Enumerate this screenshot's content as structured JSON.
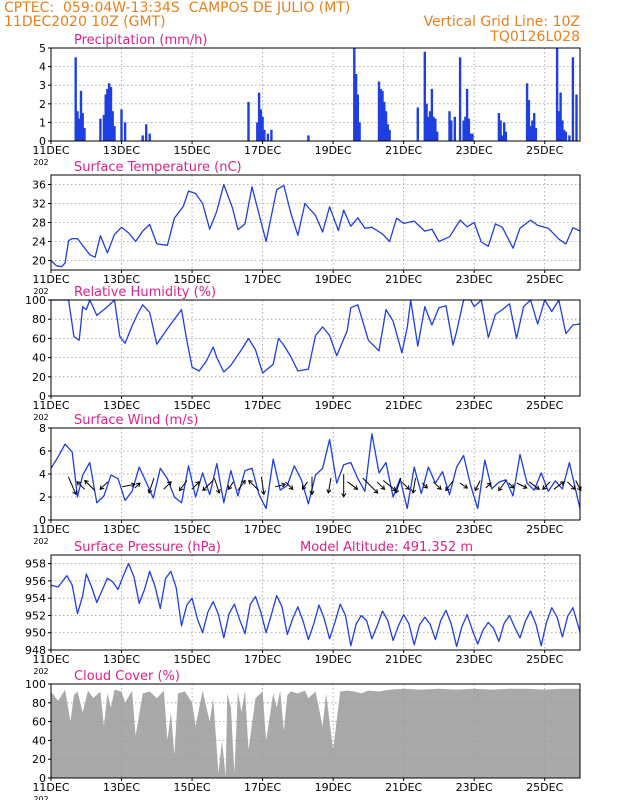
{
  "header": {
    "line1_left": "CPTEC:  059:04W-13:34S  CAMPOS DE JULIO (MT)",
    "line2_left": "11DEC2020 10Z (GMT)",
    "line1_right": "Vertical Grid Line: 10Z",
    "line2_right": "TQ0126L028"
  },
  "colors": {
    "header": "#e8801c",
    "title": "#e0208a",
    "line": "#1f3fe0",
    "cloud": "#a9a9a9",
    "grid": "#9a9a9a",
    "arrow": "#000000"
  },
  "x_axis": {
    "start_day": 11,
    "end_day": 26,
    "tick_labels": [
      "11DEC",
      "13DEC",
      "15DEC",
      "17DEC",
      "19DEC",
      "21DEC",
      "23DEC",
      "25DEC"
    ],
    "tick_days": [
      11,
      13,
      15,
      17,
      19,
      21,
      23,
      25
    ],
    "year_stub": "202"
  },
  "chart_data": [
    {
      "type": "bar",
      "title": "Precipitation (mm/h)",
      "ylim": [
        0,
        5
      ],
      "yticks": [
        0,
        1,
        2,
        3,
        4,
        5
      ],
      "x": [
        11.7,
        11.75,
        11.8,
        11.85,
        11.9,
        11.95,
        12.4,
        12.5,
        12.55,
        12.6,
        12.65,
        12.7,
        12.75,
        12.8,
        13.0,
        13.1,
        13.6,
        13.7,
        13.8,
        16.6,
        16.85,
        16.9,
        16.95,
        17.0,
        17.05,
        17.15,
        17.25,
        18.3,
        19.6,
        19.65,
        19.7,
        19.75,
        20.3,
        20.35,
        20.4,
        20.45,
        20.5,
        20.55,
        20.6,
        21.4,
        21.6,
        21.65,
        21.7,
        21.75,
        21.8,
        21.85,
        21.9,
        21.95,
        22.3,
        22.35,
        22.45,
        22.6,
        22.7,
        22.75,
        22.8,
        22.85,
        22.9,
        22.95,
        23.7,
        23.75,
        23.8,
        23.85,
        23.9,
        24.5,
        24.55,
        24.6,
        24.65,
        24.7,
        24.75,
        25.35,
        25.4,
        25.45,
        25.5,
        25.55,
        25.6,
        25.7,
        25.8,
        25.9
      ],
      "values": [
        4.5,
        1.6,
        1.2,
        2.7,
        1.5,
        0.7,
        1.2,
        1.4,
        2.5,
        2.8,
        3.1,
        2.9,
        1.6,
        0.8,
        1.7,
        1.0,
        0.3,
        0.9,
        0.4,
        2.1,
        1.0,
        2.6,
        1.7,
        1.3,
        0.6,
        0.4,
        0.6,
        0.3,
        5.0,
        3.6,
        2.5,
        1.0,
        3.2,
        2.8,
        2.7,
        2.1,
        1.6,
        0.9,
        0.6,
        1.8,
        4.8,
        2.0,
        1.3,
        1.6,
        2.8,
        1.3,
        1.2,
        0.5,
        1.6,
        1.1,
        1.3,
        4.5,
        1.1,
        1.3,
        2.8,
        1.2,
        0.4,
        0.4,
        1.5,
        1.1,
        0.3,
        1.0,
        0.5,
        3.1,
        2.2,
        0.8,
        1.1,
        1.5,
        0.7,
        5.0,
        1.6,
        2.6,
        1.1,
        0.6,
        0.5,
        0.3,
        4.5,
        2.5
      ]
    },
    {
      "type": "line",
      "title": "Surface Temperature (nC)",
      "ylim": [
        18,
        38
      ],
      "yticks": [
        20,
        24,
        28,
        32,
        36
      ],
      "x": [
        11.0,
        11.15,
        11.3,
        11.4,
        11.5,
        11.6,
        11.75,
        12.1,
        12.25,
        12.4,
        12.6,
        12.8,
        13.0,
        13.2,
        13.4,
        13.6,
        13.8,
        14.0,
        14.3,
        14.5,
        14.75,
        14.9,
        15.1,
        15.3,
        15.5,
        15.7,
        15.9,
        16.15,
        16.3,
        16.5,
        16.7,
        16.9,
        17.1,
        17.4,
        17.6,
        17.8,
        18.0,
        18.2,
        18.5,
        18.7,
        18.9,
        19.15,
        19.3,
        19.5,
        19.7,
        19.9,
        20.1,
        20.4,
        20.6,
        20.8,
        21.0,
        21.3,
        21.6,
        21.8,
        22.0,
        22.3,
        22.6,
        22.8,
        23.0,
        23.2,
        23.4,
        23.6,
        23.8,
        24.1,
        24.3,
        24.6,
        24.8,
        25.1,
        25.4,
        25.6,
        25.8,
        26.0
      ],
      "values": [
        20.0,
        18.9,
        18.7,
        19.5,
        24.2,
        24.6,
        24.6,
        21.2,
        20.7,
        25.2,
        21.6,
        25.5,
        27.0,
        25.8,
        24.0,
        26.2,
        27.6,
        23.5,
        23.2,
        28.9,
        31.4,
        34.6,
        34.1,
        32.0,
        26.6,
        30.4,
        36.0,
        31.0,
        26.5,
        27.7,
        35.5,
        29.7,
        24.0,
        34.9,
        35.8,
        30.0,
        25.3,
        32.0,
        29.5,
        26.0,
        31.3,
        26.3,
        30.6,
        27.2,
        29.0,
        26.8,
        27.0,
        25.6,
        24.0,
        28.9,
        27.8,
        28.3,
        26.2,
        26.6,
        24.0,
        25.0,
        28.5,
        27.1,
        28.0,
        23.9,
        23.0,
        27.7,
        27.0,
        22.6,
        26.8,
        28.5,
        27.4,
        26.8,
        24.5,
        23.5,
        26.9,
        26.2
      ]
    },
    {
      "type": "line",
      "title": "Relative Humidity (%)",
      "ylim": [
        0,
        100
      ],
      "yticks": [
        0,
        20,
        40,
        60,
        80,
        100
      ],
      "x": [
        11.0,
        11.5,
        11.65,
        11.8,
        11.9,
        12.0,
        12.1,
        12.3,
        12.6,
        12.8,
        12.95,
        13.1,
        13.3,
        13.45,
        13.6,
        13.8,
        14.0,
        14.3,
        14.5,
        14.7,
        14.85,
        15.0,
        15.2,
        15.4,
        15.6,
        15.7,
        15.9,
        16.1,
        16.4,
        16.6,
        16.8,
        17.0,
        17.3,
        17.45,
        17.6,
        17.8,
        18.0,
        18.3,
        18.5,
        18.7,
        18.9,
        19.1,
        19.4,
        19.5,
        19.7,
        20.0,
        20.3,
        20.5,
        20.7,
        20.95,
        21.1,
        21.2,
        21.4,
        21.6,
        21.8,
        22.0,
        22.2,
        22.4,
        22.5,
        22.7,
        22.9,
        23.0,
        23.2,
        23.4,
        23.6,
        23.8,
        24.0,
        24.2,
        24.4,
        24.6,
        24.8,
        25.0,
        25.2,
        25.4,
        25.6,
        25.8,
        26.0
      ],
      "values": [
        100,
        100,
        62,
        58,
        93,
        90,
        100,
        84,
        93,
        100,
        62,
        55,
        73,
        85,
        95,
        87,
        54,
        70,
        80,
        90,
        58,
        30,
        26,
        36,
        51,
        40,
        25,
        32,
        48,
        60,
        48,
        24,
        33,
        60,
        53,
        41,
        26,
        28,
        63,
        72,
        63,
        42,
        68,
        92,
        95,
        58,
        47,
        90,
        78,
        45,
        71,
        100,
        52,
        93,
        74,
        92,
        94,
        53,
        67,
        100,
        100,
        93,
        100,
        61,
        85,
        90,
        96,
        60,
        93,
        100,
        75,
        100,
        88,
        100,
        65,
        74,
        75
      ]
    },
    {
      "type": "line",
      "title": "Surface Wind (m/s)",
      "ylim": [
        0,
        8
      ],
      "yticks": [
        0,
        2,
        4,
        6,
        8
      ],
      "x": [
        11.0,
        11.2,
        11.4,
        11.6,
        11.75,
        11.9,
        12.1,
        12.3,
        12.5,
        12.7,
        12.9,
        13.1,
        13.3,
        13.5,
        13.7,
        13.9,
        14.1,
        14.3,
        14.5,
        14.7,
        14.9,
        15.1,
        15.3,
        15.5,
        15.7,
        15.9,
        16.1,
        16.3,
        16.5,
        16.7,
        16.9,
        17.1,
        17.3,
        17.5,
        17.7,
        17.9,
        18.1,
        18.3,
        18.5,
        18.7,
        18.9,
        19.1,
        19.3,
        19.5,
        19.7,
        19.9,
        20.1,
        20.3,
        20.5,
        20.7,
        20.9,
        21.1,
        21.3,
        21.5,
        21.7,
        21.9,
        22.1,
        22.3,
        22.5,
        22.7,
        22.9,
        23.1,
        23.3,
        23.5,
        23.7,
        23.9,
        24.1,
        24.3,
        24.5,
        24.7,
        24.9,
        25.1,
        25.3,
        25.5,
        25.7,
        25.9,
        26.0
      ],
      "values": [
        4.5,
        5.5,
        6.6,
        5.9,
        2.0,
        3.9,
        5.0,
        1.5,
        2.1,
        3.9,
        3.6,
        1.7,
        2.5,
        4.6,
        3.3,
        1.9,
        4.5,
        3.6,
        2.0,
        1.5,
        4.7,
        2.0,
        4.1,
        2.2,
        4.9,
        1.5,
        4.3,
        2.1,
        4.3,
        4.5,
        2.2,
        1.0,
        5.3,
        2.6,
        3.0,
        4.7,
        3.5,
        1.4,
        3.9,
        4.5,
        7.0,
        3.2,
        4.8,
        5.0,
        3.6,
        2.5,
        7.5,
        4.1,
        5.0,
        2.0,
        3.6,
        1.0,
        4.6,
        2.3,
        4.6,
        3.2,
        4.2,
        2.2,
        4.6,
        5.6,
        3.0,
        1.0,
        5.2,
        2.7,
        3.3,
        3.5,
        2.1,
        5.7,
        3.2,
        2.6,
        4.1,
        2.5,
        3.4,
        2.7,
        5.0,
        2.3,
        1.0
      ]
    },
    {
      "type": "line",
      "title": "Surface Pressure (hPa)",
      "ylim": [
        948,
        959
      ],
      "yticks": [
        948,
        950,
        952,
        954,
        956,
        958
      ],
      "x": [
        11.0,
        11.2,
        11.45,
        11.6,
        11.75,
        11.9,
        12.0,
        12.15,
        12.3,
        12.45,
        12.6,
        12.75,
        12.9,
        13.05,
        13.2,
        13.35,
        13.5,
        13.65,
        13.8,
        13.95,
        14.1,
        14.25,
        14.4,
        14.55,
        14.7,
        14.85,
        15.0,
        15.15,
        15.3,
        15.45,
        15.6,
        15.75,
        15.9,
        16.05,
        16.2,
        16.35,
        16.5,
        16.65,
        16.8,
        16.95,
        17.1,
        17.25,
        17.4,
        17.55,
        17.7,
        17.85,
        18.0,
        18.15,
        18.3,
        18.45,
        18.6,
        18.75,
        18.9,
        19.05,
        19.2,
        19.35,
        19.5,
        19.65,
        19.8,
        19.95,
        20.1,
        20.25,
        20.4,
        20.55,
        20.7,
        20.85,
        21.0,
        21.15,
        21.3,
        21.45,
        21.6,
        21.75,
        21.9,
        22.05,
        22.2,
        22.35,
        22.5,
        22.65,
        22.8,
        22.95,
        23.1,
        23.25,
        23.4,
        23.55,
        23.7,
        23.85,
        24.0,
        24.15,
        24.3,
        24.45,
        24.6,
        24.75,
        24.9,
        25.05,
        25.2,
        25.35,
        25.5,
        25.65,
        25.8,
        26.0
      ],
      "values": [
        955.5,
        955.3,
        956.6,
        955.5,
        952.2,
        954.3,
        956.8,
        955.3,
        953.5,
        954.9,
        956.3,
        955.9,
        955.0,
        956.6,
        958.0,
        956.5,
        953.4,
        955.0,
        957.1,
        955.4,
        952.8,
        956.3,
        957.1,
        955.2,
        950.8,
        953.2,
        954.0,
        951.6,
        950.0,
        952.4,
        953.6,
        952.1,
        949.4,
        952.2,
        953.3,
        951.5,
        949.9,
        953.3,
        954.2,
        952.4,
        950.0,
        952.1,
        954.3,
        953.0,
        949.8,
        951.6,
        953.0,
        951.3,
        949.2,
        951.0,
        953.2,
        951.6,
        949.3,
        951.2,
        953.3,
        952.0,
        948.5,
        951.0,
        952.0,
        951.4,
        949.3,
        950.8,
        952.5,
        951.4,
        949.1,
        950.8,
        952.1,
        951.0,
        948.6,
        950.9,
        951.8,
        951.0,
        949.2,
        951.4,
        952.6,
        951.0,
        948.4,
        950.7,
        952.1,
        950.3,
        948.7,
        950.3,
        951.2,
        950.5,
        949.0,
        951.1,
        952.0,
        950.6,
        949.4,
        951.3,
        952.5,
        951.0,
        948.5,
        951.2,
        952.9,
        951.8,
        949.5,
        951.9,
        952.9,
        950.1
      ]
    },
    {
      "type": "area",
      "title": "Cloud Cover (%)",
      "ylim": [
        0,
        100
      ],
      "yticks": [
        0,
        20,
        40,
        60,
        80,
        100
      ],
      "x": [
        11.0,
        11.2,
        11.4,
        11.55,
        11.65,
        11.75,
        11.9,
        12.05,
        12.2,
        12.4,
        12.5,
        12.6,
        12.7,
        12.8,
        13.0,
        13.1,
        13.3,
        13.4,
        13.6,
        13.8,
        14.0,
        14.2,
        14.3,
        14.4,
        14.5,
        14.6,
        14.8,
        15.0,
        15.1,
        15.3,
        15.5,
        15.6,
        15.75,
        15.85,
        15.95,
        16.0,
        16.1,
        16.2,
        16.3,
        16.4,
        16.5,
        16.6,
        16.8,
        17.0,
        17.1,
        17.3,
        17.4,
        17.5,
        17.6,
        17.7,
        17.8,
        18.0,
        18.2,
        18.3,
        18.5,
        18.7,
        18.8,
        19.0,
        19.2,
        19.4,
        19.6,
        19.8,
        20.0,
        20.3,
        20.6,
        21.0,
        21.5,
        22.0,
        22.5,
        23.0,
        23.5,
        24.0,
        24.5,
        25.0,
        25.5,
        26.0
      ],
      "values": [
        92,
        82,
        94,
        60,
        88,
        92,
        70,
        93,
        85,
        92,
        55,
        90,
        75,
        94,
        92,
        80,
        93,
        45,
        90,
        92,
        85,
        93,
        40,
        70,
        25,
        90,
        92,
        80,
        55,
        93,
        60,
        85,
        5,
        40,
        2,
        90,
        75,
        5,
        92,
        70,
        93,
        30,
        85,
        92,
        40,
        90,
        75,
        93,
        50,
        88,
        92,
        90,
        93,
        85,
        92,
        55,
        90,
        30,
        92,
        93,
        92,
        90,
        93,
        92,
        94,
        95,
        94,
        95,
        94,
        95,
        94,
        95,
        95,
        94,
        95,
        95
      ]
    }
  ],
  "wind_vectors": {
    "x": [
      11.6,
      11.85,
      12.1,
      12.5,
      13.2,
      13.45,
      13.85,
      14.3,
      14.75,
      15.1,
      15.45,
      15.7,
      16.1,
      16.4,
      16.75,
      17.0,
      17.5,
      17.75,
      18.2,
      18.4,
      18.9,
      19.3,
      19.55,
      20.05,
      20.35,
      20.6,
      20.85,
      21.05,
      21.3,
      21.6,
      21.95,
      22.3,
      22.7,
      23.1,
      23.4,
      23.8,
      24.05,
      24.35,
      24.7,
      25.05,
      25.4,
      25.75,
      25.95
    ],
    "u": [
      1.5,
      -1.5,
      -2.0,
      -1.5,
      2.5,
      1.0,
      -1.0,
      1.5,
      -1.5,
      1.5,
      -2.0,
      1.0,
      -1.0,
      1.5,
      -2.0,
      0.5,
      2.0,
      1.5,
      -1.0,
      0.0,
      -0.5,
      0.0,
      2.0,
      3.0,
      1.5,
      2.5,
      -1.0,
      1.5,
      -0.5,
      1.0,
      1.5,
      -1.5,
      1.5,
      -1.0,
      1.0,
      -1.5,
      1.0,
      2.0,
      2.0,
      -1.5,
      2.0,
      1.5,
      1.0
    ],
    "v": [
      -3.5,
      1.5,
      2.0,
      -1.5,
      0.5,
      1.0,
      -3.0,
      1.5,
      -2.0,
      1.5,
      -2.0,
      -3.0,
      -1.5,
      2.0,
      2.0,
      -3.5,
      0.5,
      -1.5,
      -1.5,
      -3.5,
      -3.0,
      -4.5,
      -1.5,
      -3.0,
      -1.5,
      -2.0,
      -3.0,
      -1.5,
      -3.0,
      -1.0,
      -1.5,
      -2.0,
      -1.0,
      -2.0,
      1.0,
      -2.0,
      -1.0,
      -1.0,
      -1.5,
      -1.5,
      1.5,
      -1.5,
      -2.0
    ]
  },
  "model_altitude": "Model Altitude: 491.352 m"
}
